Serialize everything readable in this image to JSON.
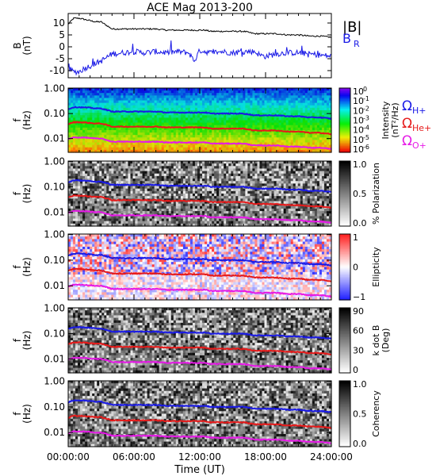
{
  "chart_data": {
    "title": "ACE Mag 2013-200",
    "xlabel": "Time (UT)",
    "x_ticks": [
      "00:00:00",
      "06:00:00",
      "12:00:00",
      "18:00:00",
      "24:00:00"
    ],
    "x_range_hours": [
      0,
      24
    ],
    "panels": [
      {
        "type": "line",
        "ylabel": [
          "B",
          "(nT)"
        ],
        "ylim": [
          -13,
          14
        ],
        "y_ticks": [
          "10",
          "5",
          "0",
          "-5",
          "-10"
        ],
        "y_tick_values": [
          10,
          5,
          0,
          -5,
          -10
        ],
        "legend": [
          {
            "label": "|B|",
            "color": "#000000"
          },
          {
            "label": "B",
            "sub": "R",
            "color": "#1a1ae6"
          }
        ],
        "series": [
          {
            "name": "|B|",
            "color": "#000000",
            "x": [
              0,
              0.5,
              1,
              1.5,
              2,
              2.5,
              3,
              3.5,
              4,
              5,
              6,
              7,
              8,
              9,
              10,
              11,
              11.5,
              12,
              12.5,
              13,
              14,
              15,
              16,
              17,
              17.5,
              18,
              19,
              20,
              21,
              22,
              23,
              24
            ],
            "y": [
              9.5,
              12,
              12,
              11.5,
              11,
              10.5,
              10.5,
              9,
              7.5,
              7.5,
              7.5,
              7.5,
              7.5,
              7,
              7,
              7,
              7,
              7,
              7,
              6.5,
              6.5,
              6.5,
              6.5,
              5.5,
              5.5,
              5.5,
              5.5,
              5,
              5,
              4.5,
              4.5,
              4
            ]
          },
          {
            "name": "B_R",
            "color": "#1a1ae6",
            "x": [
              0,
              0.5,
              1,
              1.5,
              2,
              2.5,
              3,
              3.5,
              4,
              5,
              6,
              7,
              8,
              9,
              10,
              11,
              11.5,
              12,
              12.5,
              13,
              14,
              15,
              16,
              17,
              17.5,
              18,
              19,
              20,
              21,
              22,
              23,
              24
            ],
            "y": [
              -9,
              -10.5,
              -10.5,
              -9,
              -8,
              -7,
              -6,
              -4.5,
              -3,
              -2.5,
              -2,
              -2.5,
              -2,
              -2.5,
              -2,
              -2.5,
              -6,
              -1.5,
              -2,
              -2.5,
              -2,
              -2.5,
              -2,
              -2,
              -3.5,
              -4,
              -3,
              -2.5,
              -2.5,
              -3,
              -3.5,
              -4
            ]
          }
        ]
      },
      {
        "type": "heatmap",
        "ylabel": [
          "f",
          "(Hz)"
        ],
        "y_ticks": [
          "1.00",
          "0.10",
          "0.01"
        ],
        "colorbar": "rainbow",
        "colorbar_label": [
          "Intensity",
          "(nT²/Hz)"
        ],
        "colorbar_ticks": [
          {
            "base": "10",
            "exp": "0"
          },
          {
            "base": "10",
            "exp": "-1"
          },
          {
            "base": "10",
            "exp": "-2"
          },
          {
            "base": "10",
            "exp": "-3"
          },
          {
            "base": "10",
            "exp": "-4"
          },
          {
            "base": "10",
            "exp": "-5"
          },
          {
            "base": "10",
            "exp": "-6"
          }
        ],
        "side_labels": [
          {
            "symbol": "Ω",
            "sub": "H+",
            "color": "#1a1ae6"
          },
          {
            "symbol": "Ω",
            "sub": "He+",
            "color": "#e61a1a"
          },
          {
            "symbol": "Ω",
            "sub": "O+",
            "color": "#e61ae6"
          }
        ]
      },
      {
        "type": "heatmap",
        "ylabel": [
          "f",
          "(Hz)"
        ],
        "y_ticks": [
          "1.00",
          "0.10",
          "0.01"
        ],
        "colorbar": "gray",
        "colorbar_label": [
          "% Polarization"
        ],
        "colorbar_ticks": [
          {
            "text": "1.0"
          },
          {
            "text": "0.5"
          },
          {
            "text": "0.0"
          }
        ]
      },
      {
        "type": "heatmap",
        "ylabel": [
          "f",
          "(Hz)"
        ],
        "y_ticks": [
          "1.00",
          "0.10",
          "0.01"
        ],
        "colorbar": "bwr",
        "colorbar_label": [
          "Ellipticity"
        ],
        "colorbar_ticks": [
          {
            "text": "1"
          },
          {
            "text": "0"
          },
          {
            "text": "−1"
          }
        ]
      },
      {
        "type": "heatmap",
        "ylabel": [
          "f",
          "(Hz)"
        ],
        "y_ticks": [
          "1.00",
          "0.10",
          "0.01"
        ],
        "colorbar": "gray",
        "colorbar_label": [
          "k dot B",
          "(Deg)"
        ],
        "colorbar_ticks": [
          {
            "text": "90"
          },
          {
            "text": "60"
          },
          {
            "text": "30"
          },
          {
            "text": "0"
          }
        ]
      },
      {
        "type": "heatmap",
        "ylabel": [
          "f",
          "(Hz)"
        ],
        "y_ticks": [
          "1.00",
          "0.10",
          "0.01"
        ],
        "colorbar": "gray",
        "colorbar_label": [
          "Coherency"
        ],
        "colorbar_ticks": [
          {
            "text": "1.0"
          },
          {
            "text": "0.5"
          },
          {
            "text": "0.0"
          }
        ]
      }
    ],
    "gyro_lines": {
      "x": [
        0,
        0.5,
        1,
        1.5,
        2,
        2.5,
        3,
        3.5,
        4,
        5,
        6,
        7,
        8,
        9,
        10,
        11,
        11.5,
        12,
        12.5,
        13,
        14,
        15,
        16,
        17,
        17.5,
        18,
        19,
        20,
        21,
        22,
        23,
        24
      ],
      "H+": [
        0.15,
        0.18,
        0.18,
        0.175,
        0.17,
        0.16,
        0.16,
        0.14,
        0.12,
        0.12,
        0.12,
        0.12,
        0.12,
        0.11,
        0.11,
        0.11,
        0.11,
        0.11,
        0.11,
        0.1,
        0.1,
        0.1,
        0.1,
        0.085,
        0.085,
        0.085,
        0.085,
        0.078,
        0.078,
        0.07,
        0.07,
        0.062
      ],
      "He+": [
        0.038,
        0.045,
        0.045,
        0.044,
        0.042,
        0.04,
        0.04,
        0.035,
        0.03,
        0.03,
        0.03,
        0.03,
        0.03,
        0.028,
        0.028,
        0.028,
        0.028,
        0.028,
        0.028,
        0.025,
        0.025,
        0.025,
        0.025,
        0.021,
        0.021,
        0.021,
        0.021,
        0.019,
        0.019,
        0.017,
        0.017,
        0.015
      ],
      "O+": [
        0.0095,
        0.011,
        0.011,
        0.011,
        0.0105,
        0.01,
        0.01,
        0.0088,
        0.0075,
        0.0075,
        0.0075,
        0.0075,
        0.0075,
        0.007,
        0.007,
        0.007,
        0.007,
        0.007,
        0.007,
        0.0063,
        0.0063,
        0.0063,
        0.0063,
        0.0053,
        0.0053,
        0.0053,
        0.0053,
        0.0048,
        0.0048,
        0.0043,
        0.0043,
        0.0038
      ],
      "colors": {
        "H+": "#1a1ae6",
        "He+": "#e61a1a",
        "O+": "#e61ae6"
      }
    }
  }
}
